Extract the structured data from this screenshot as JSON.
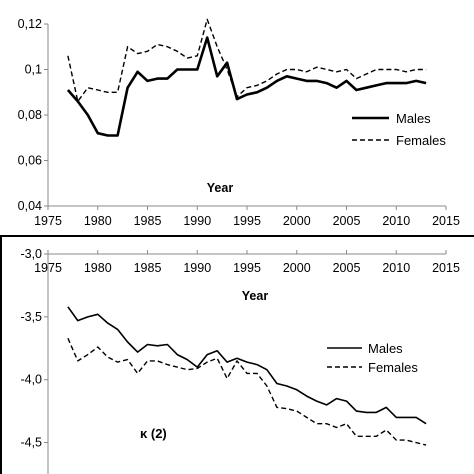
{
  "chart_data": [
    {
      "type": "line",
      "title": "",
      "xlabel": "Year",
      "ylabel": "",
      "xlim": [
        1975,
        2015
      ],
      "ylim": [
        0.04,
        0.12
      ],
      "x_ticks": [
        1975,
        1980,
        1985,
        1990,
        1995,
        2000,
        2005,
        2010,
        2015
      ],
      "x_tick_labels": [
        "1975",
        "1980",
        "1985",
        "1990",
        "1995",
        "2000",
        "2005",
        "2010",
        "2015"
      ],
      "y_ticks": [
        0.04,
        0.06,
        0.08,
        0.1,
        0.12
      ],
      "y_tick_labels": [
        "0,04",
        "0,06",
        "0,08",
        "0,1",
        "0,12"
      ],
      "grid": false,
      "legend_position": "right",
      "series": [
        {
          "name": "Males",
          "line_style": "solid",
          "x": [
            1977,
            1978,
            1979,
            1980,
            1981,
            1982,
            1983,
            1984,
            1985,
            1986,
            1987,
            1988,
            1989,
            1990,
            1991,
            1992,
            1993,
            1994,
            1995,
            1996,
            1997,
            1998,
            1999,
            2000,
            2001,
            2002,
            2003,
            2004,
            2005,
            2006,
            2007,
            2008,
            2009,
            2010,
            2011,
            2012,
            2013
          ],
          "y": [
            0.091,
            0.086,
            0.08,
            0.072,
            0.071,
            0.071,
            0.092,
            0.099,
            0.095,
            0.096,
            0.096,
            0.1,
            0.1,
            0.1,
            0.114,
            0.097,
            0.103,
            0.087,
            0.089,
            0.09,
            0.092,
            0.095,
            0.097,
            0.096,
            0.095,
            0.095,
            0.094,
            0.092,
            0.095,
            0.091,
            0.092,
            0.093,
            0.094,
            0.094,
            0.094,
            0.095,
            0.094
          ]
        },
        {
          "name": "Females",
          "line_style": "dashed",
          "x": [
            1977,
            1978,
            1979,
            1980,
            1981,
            1982,
            1983,
            1984,
            1985,
            1986,
            1987,
            1988,
            1989,
            1990,
            1991,
            1992,
            1993,
            1994,
            1995,
            1996,
            1997,
            1998,
            1999,
            2000,
            2001,
            2002,
            2003,
            2004,
            2005,
            2006,
            2007,
            2008,
            2009,
            2010,
            2011,
            2012,
            2013
          ],
          "y": [
            0.106,
            0.086,
            0.092,
            0.091,
            0.09,
            0.09,
            0.11,
            0.107,
            0.108,
            0.111,
            0.11,
            0.108,
            0.105,
            0.106,
            0.122,
            0.11,
            0.1,
            0.088,
            0.092,
            0.093,
            0.095,
            0.098,
            0.1,
            0.1,
            0.099,
            0.101,
            0.1,
            0.099,
            0.1,
            0.096,
            0.098,
            0.1,
            0.1,
            0.1,
            0.099,
            0.1,
            0.1
          ]
        }
      ]
    },
    {
      "type": "line",
      "title": "",
      "annotation": "κ (2)",
      "xlabel": "Year",
      "ylabel": "",
      "xlim": [
        1975,
        2015
      ],
      "ylim": [
        -4.75,
        -3.0
      ],
      "x_axis_position": "top",
      "x_ticks": [
        1975,
        1980,
        1985,
        1990,
        1995,
        2000,
        2005,
        2010,
        2015
      ],
      "x_tick_labels": [
        "1975",
        "1980",
        "1985",
        "1990",
        "1995",
        "2000",
        "2005",
        "2010",
        "2015"
      ],
      "y_ticks": [
        -3.0,
        -3.5,
        -4.0,
        -4.5
      ],
      "y_tick_labels": [
        "-3,0",
        "-3,5",
        "-4,0",
        "-4,5"
      ],
      "grid": false,
      "legend_position": "right",
      "series": [
        {
          "name": "Males",
          "line_style": "solid",
          "x": [
            1977,
            1978,
            1979,
            1980,
            1981,
            1982,
            1983,
            1984,
            1985,
            1986,
            1987,
            1988,
            1989,
            1990,
            1991,
            1992,
            1993,
            1994,
            1995,
            1996,
            1997,
            1998,
            1999,
            2000,
            2001,
            2002,
            2003,
            2004,
            2005,
            2006,
            2007,
            2008,
            2009,
            2010,
            2011,
            2012,
            2013
          ],
          "y": [
            -3.42,
            -3.53,
            -3.5,
            -3.48,
            -3.55,
            -3.6,
            -3.7,
            -3.78,
            -3.72,
            -3.73,
            -3.72,
            -3.8,
            -3.84,
            -3.9,
            -3.8,
            -3.77,
            -3.86,
            -3.83,
            -3.86,
            -3.88,
            -3.92,
            -4.03,
            -4.05,
            -4.08,
            -4.13,
            -4.17,
            -4.2,
            -4.15,
            -4.17,
            -4.25,
            -4.26,
            -4.26,
            -4.22,
            -4.3,
            -4.3,
            -4.3,
            -4.35
          ]
        },
        {
          "name": "Females",
          "line_style": "dashed",
          "x": [
            1977,
            1978,
            1979,
            1980,
            1981,
            1982,
            1983,
            1984,
            1985,
            1986,
            1987,
            1988,
            1989,
            1990,
            1991,
            1992,
            1993,
            1994,
            1995,
            1996,
            1997,
            1998,
            1999,
            2000,
            2001,
            2002,
            2003,
            2004,
            2005,
            2006,
            2007,
            2008,
            2009,
            2010,
            2011,
            2012,
            2013
          ],
          "y": [
            -3.67,
            -3.85,
            -3.8,
            -3.74,
            -3.82,
            -3.86,
            -3.84,
            -3.95,
            -3.85,
            -3.85,
            -3.88,
            -3.9,
            -3.92,
            -3.91,
            -3.86,
            -3.83,
            -3.99,
            -3.85,
            -3.95,
            -3.95,
            -4.05,
            -4.22,
            -4.23,
            -4.25,
            -4.3,
            -4.35,
            -4.35,
            -4.38,
            -4.35,
            -4.45,
            -4.45,
            -4.45,
            -4.4,
            -4.48,
            -4.48,
            -4.5,
            -4.52
          ]
        }
      ]
    }
  ]
}
